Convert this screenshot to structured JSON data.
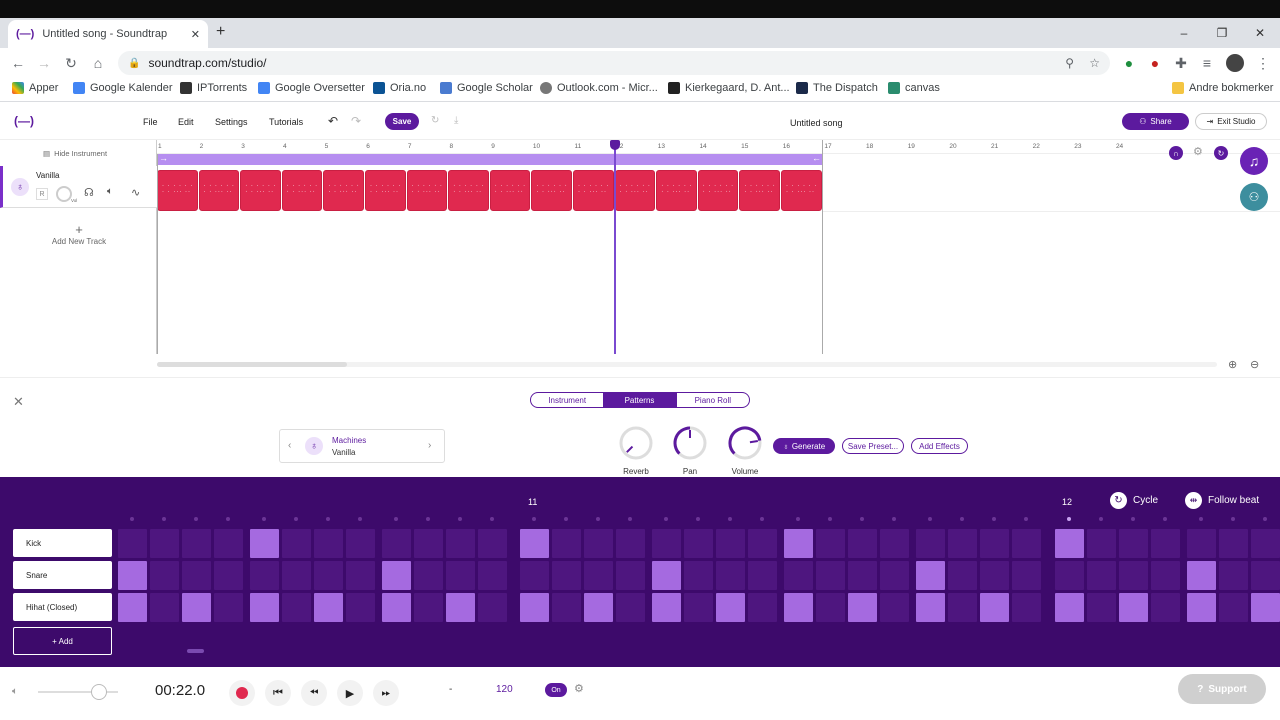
{
  "browser": {
    "tab_title": "Untitled song - Soundtrap",
    "new_tab_label": "+",
    "url": "soundtrap.com/studio/",
    "window_controls": [
      "–",
      "❐",
      "✕"
    ],
    "bookmarks": [
      {
        "label": "Apper",
        "icon": "apps-icon"
      },
      {
        "label": "Google Kalender",
        "icon": "calendar-icon"
      },
      {
        "label": "IPTorrents",
        "icon": "ipt-icon"
      },
      {
        "label": "Google Oversetter",
        "icon": "translate-icon"
      },
      {
        "label": "Oria.no",
        "icon": "oria-icon"
      },
      {
        "label": "Google Scholar",
        "icon": "scholar-icon"
      },
      {
        "label": "Outlook.com - Micr...",
        "icon": "globe-icon"
      },
      {
        "label": "Kierkegaard, D. Ant...",
        "icon": "kierkegaard-icon"
      },
      {
        "label": "The Dispatch",
        "icon": "dispatch-icon"
      },
      {
        "label": "canvas",
        "icon": "canvas-icon"
      }
    ],
    "other_bookmarks": "Andre bokmerker"
  },
  "studio": {
    "menu": [
      "File",
      "Edit",
      "Settings",
      "Tutorials"
    ],
    "save_label": "Save",
    "song_title": "Untitled song",
    "share_label": "Share",
    "exit_label": "Exit Studio",
    "hide_instrument": "Hide Instrument",
    "track": {
      "name": "Vanilla",
      "rec": "R",
      "vol": "Vol"
    },
    "add_track": "Add New Track",
    "ruler_numbers": [
      "1",
      "2",
      "3",
      "4",
      "5",
      "6",
      "7",
      "8",
      "9",
      "10",
      "11",
      "12",
      "13",
      "14",
      "15",
      "16",
      "17",
      "18",
      "19",
      "20",
      "21",
      "22",
      "23",
      "24"
    ],
    "clip_count": 16,
    "accent": "#5c1a9e",
    "clip_color": "#e0294f"
  },
  "editor": {
    "tabs": [
      "Instrument",
      "Patterns",
      "Piano Roll"
    ],
    "active_tab": "Patterns",
    "instrument_category": "Machines",
    "instrument_name": "Vanilla",
    "knobs": [
      {
        "label": "Reverb",
        "value": 0.0
      },
      {
        "label": "Pan",
        "value": 0.5
      },
      {
        "label": "Volume",
        "value": 0.8
      }
    ],
    "generate_label": "Generate",
    "save_preset_label": "Save Preset...",
    "add_effects_label": "Add Effects"
  },
  "sequencer": {
    "bar_numbers": [
      "11",
      "12"
    ],
    "cycle_label": "Cycle",
    "follow_label": "Follow beat",
    "rows": [
      {
        "name": "Kick",
        "steps": [
          0,
          0,
          0,
          0,
          1,
          0,
          0,
          0,
          0,
          0,
          0,
          0,
          1,
          0,
          0,
          0,
          0,
          0,
          0,
          0,
          1,
          0,
          0,
          0,
          0,
          0,
          0,
          0,
          1,
          0,
          0,
          0,
          0,
          0,
          0
        ]
      },
      {
        "name": "Snare",
        "steps": [
          1,
          0,
          0,
          0,
          0,
          0,
          0,
          0,
          1,
          0,
          0,
          0,
          0,
          0,
          0,
          0,
          1,
          0,
          0,
          0,
          0,
          0,
          0,
          0,
          1,
          0,
          0,
          0,
          0,
          0,
          0,
          0,
          1,
          0,
          0
        ]
      },
      {
        "name": "Hihat (Closed)",
        "steps": [
          1,
          0,
          1,
          0,
          1,
          0,
          1,
          0,
          1,
          0,
          1,
          0,
          1,
          0,
          1,
          0,
          1,
          0,
          1,
          0,
          1,
          0,
          1,
          0,
          1,
          0,
          1,
          0,
          1,
          0,
          1,
          0,
          1,
          0,
          1
        ]
      }
    ],
    "add_label": "+ Add"
  },
  "transport": {
    "time": "00:22.0",
    "key": "-",
    "tempo": "120",
    "metronome": "On",
    "support": "Support"
  }
}
